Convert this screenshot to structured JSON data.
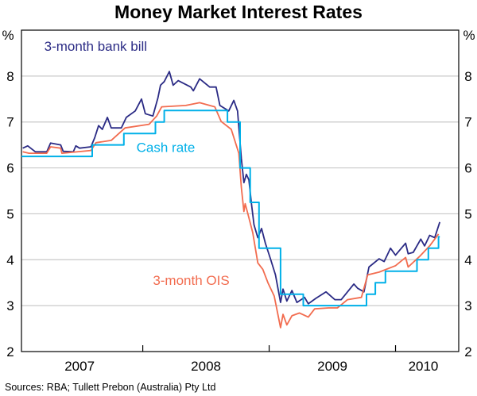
{
  "chart_data": {
    "type": "line",
    "title": "Money Market Interest Rates",
    "source": "Sources: RBA; Tullett Prebon (Australia) Pty Ltd",
    "ylabel_left": "%",
    "ylabel_right": "%",
    "xlim": [
      2007.04,
      2010.5
    ],
    "ylim": [
      2,
      9
    ],
    "yticks": [
      2,
      3,
      4,
      5,
      6,
      7,
      8
    ],
    "xtick_boundaries": [
      2008,
      2009,
      2010
    ],
    "xlabels": [
      {
        "label": "2007",
        "center": 2007.5
      },
      {
        "label": "2008",
        "center": 2008.5
      },
      {
        "label": "2009",
        "center": 2009.5
      },
      {
        "label": "2010",
        "center": 2010.22
      }
    ],
    "grid": true,
    "series": [
      {
        "name": "3-month bank bill",
        "color": "#2b2b85",
        "label_pos": [
          2007.22,
          8.55
        ],
        "points": [
          [
            2007.05,
            6.43
          ],
          [
            2007.09,
            6.48
          ],
          [
            2007.15,
            6.35
          ],
          [
            2007.24,
            6.35
          ],
          [
            2007.27,
            6.54
          ],
          [
            2007.35,
            6.5
          ],
          [
            2007.37,
            6.36
          ],
          [
            2007.45,
            6.35
          ],
          [
            2007.47,
            6.48
          ],
          [
            2007.5,
            6.43
          ],
          [
            2007.59,
            6.46
          ],
          [
            2007.62,
            6.66
          ],
          [
            2007.65,
            6.92
          ],
          [
            2007.68,
            6.84
          ],
          [
            2007.72,
            7.1
          ],
          [
            2007.75,
            6.87
          ],
          [
            2007.83,
            6.87
          ],
          [
            2007.87,
            7.1
          ],
          [
            2007.94,
            7.24
          ],
          [
            2007.99,
            7.5
          ],
          [
            2008.02,
            7.18
          ],
          [
            2008.08,
            7.13
          ],
          [
            2008.12,
            7.53
          ],
          [
            2008.14,
            7.8
          ],
          [
            2008.17,
            7.88
          ],
          [
            2008.21,
            8.1
          ],
          [
            2008.24,
            7.8
          ],
          [
            2008.28,
            7.9
          ],
          [
            2008.38,
            7.76
          ],
          [
            2008.4,
            7.68
          ],
          [
            2008.45,
            7.94
          ],
          [
            2008.53,
            7.76
          ],
          [
            2008.58,
            7.76
          ],
          [
            2008.61,
            7.36
          ],
          [
            2008.68,
            7.24
          ],
          [
            2008.72,
            7.47
          ],
          [
            2008.75,
            7.24
          ],
          [
            2008.78,
            6.2
          ],
          [
            2008.8,
            5.68
          ],
          [
            2008.82,
            5.86
          ],
          [
            2008.84,
            5.74
          ],
          [
            2008.86,
            5.22
          ],
          [
            2008.88,
            4.76
          ],
          [
            2008.91,
            4.48
          ],
          [
            2008.94,
            4.68
          ],
          [
            2008.97,
            4.36
          ],
          [
            2009.01,
            4.02
          ],
          [
            2009.05,
            3.67
          ],
          [
            2009.09,
            3.07
          ],
          [
            2009.11,
            3.36
          ],
          [
            2009.14,
            3.1
          ],
          [
            2009.18,
            3.33
          ],
          [
            2009.22,
            3.07
          ],
          [
            2009.28,
            3.18
          ],
          [
            2009.31,
            3.04
          ],
          [
            2009.37,
            3.16
          ],
          [
            2009.45,
            3.3
          ],
          [
            2009.52,
            3.13
          ],
          [
            2009.57,
            3.13
          ],
          [
            2009.62,
            3.3
          ],
          [
            2009.67,
            3.47
          ],
          [
            2009.7,
            3.38
          ],
          [
            2009.75,
            3.3
          ],
          [
            2009.79,
            3.84
          ],
          [
            2009.87,
            4.02
          ],
          [
            2009.91,
            3.96
          ],
          [
            2009.96,
            4.25
          ],
          [
            2010.0,
            4.1
          ],
          [
            2010.08,
            4.36
          ],
          [
            2010.1,
            4.13
          ],
          [
            2010.14,
            4.16
          ],
          [
            2010.2,
            4.45
          ],
          [
            2010.23,
            4.3
          ],
          [
            2010.27,
            4.53
          ],
          [
            2010.31,
            4.48
          ],
          [
            2010.35,
            4.82
          ]
        ]
      },
      {
        "name": "3-month OIS",
        "color": "#f26c4f",
        "label_pos": [
          2008.08,
          3.45
        ],
        "points": [
          [
            2007.05,
            6.35
          ],
          [
            2007.1,
            6.32
          ],
          [
            2007.24,
            6.32
          ],
          [
            2007.27,
            6.46
          ],
          [
            2007.35,
            6.43
          ],
          [
            2007.36,
            6.32
          ],
          [
            2007.59,
            6.38
          ],
          [
            2007.63,
            6.55
          ],
          [
            2007.75,
            6.6
          ],
          [
            2007.86,
            6.87
          ],
          [
            2008.05,
            6.95
          ],
          [
            2008.11,
            7.13
          ],
          [
            2008.15,
            7.33
          ],
          [
            2008.34,
            7.36
          ],
          [
            2008.45,
            7.42
          ],
          [
            2008.57,
            7.33
          ],
          [
            2008.62,
            7.01
          ],
          [
            2008.7,
            6.84
          ],
          [
            2008.76,
            6.32
          ],
          [
            2008.78,
            5.57
          ],
          [
            2008.8,
            5.05
          ],
          [
            2008.81,
            5.22
          ],
          [
            2008.83,
            5.02
          ],
          [
            2008.87,
            4.59
          ],
          [
            2008.91,
            3.93
          ],
          [
            2008.95,
            3.79
          ],
          [
            2008.99,
            3.5
          ],
          [
            2009.04,
            3.21
          ],
          [
            2009.09,
            2.52
          ],
          [
            2009.11,
            2.81
          ],
          [
            2009.14,
            2.58
          ],
          [
            2009.18,
            2.78
          ],
          [
            2009.24,
            2.84
          ],
          [
            2009.31,
            2.75
          ],
          [
            2009.36,
            2.93
          ],
          [
            2009.47,
            2.95
          ],
          [
            2009.54,
            2.95
          ],
          [
            2009.62,
            3.13
          ],
          [
            2009.73,
            3.18
          ],
          [
            2009.78,
            3.67
          ],
          [
            2009.87,
            3.73
          ],
          [
            2010.0,
            3.87
          ],
          [
            2010.08,
            4.05
          ],
          [
            2010.1,
            3.84
          ],
          [
            2010.19,
            4.07
          ],
          [
            2010.27,
            4.3
          ],
          [
            2010.34,
            4.56
          ]
        ]
      },
      {
        "name": "Cash rate",
        "color": "#00b0e8",
        "step": true,
        "label_pos": [
          2007.95,
          6.35
        ],
        "points": [
          [
            2007.04,
            6.25
          ],
          [
            2007.6,
            6.5
          ],
          [
            2007.85,
            6.75
          ],
          [
            2008.1,
            7.0
          ],
          [
            2008.17,
            7.25
          ],
          [
            2008.67,
            7.0
          ],
          [
            2008.77,
            6.0
          ],
          [
            2008.85,
            5.25
          ],
          [
            2008.92,
            4.25
          ],
          [
            2009.09,
            3.25
          ],
          [
            2009.27,
            3.0
          ],
          [
            2009.77,
            3.25
          ],
          [
            2009.84,
            3.5
          ],
          [
            2009.92,
            3.75
          ],
          [
            2010.17,
            4.0
          ],
          [
            2010.26,
            4.25
          ],
          [
            2010.34,
            4.5
          ],
          [
            2010.35,
            4.5
          ]
        ]
      }
    ]
  }
}
